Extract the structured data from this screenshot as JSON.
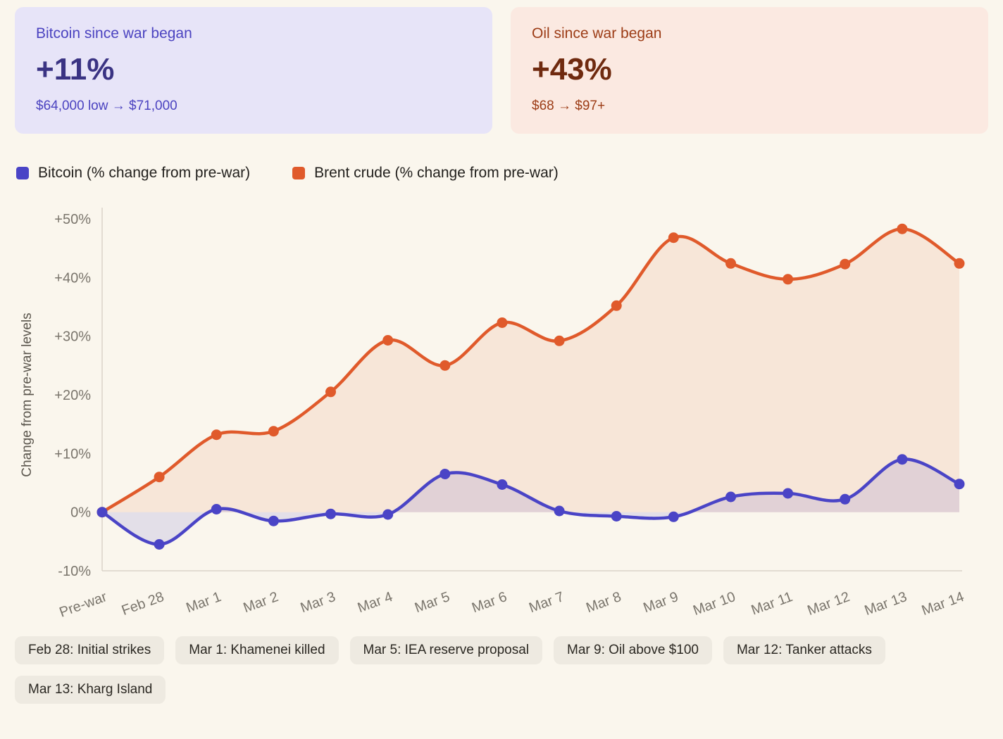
{
  "cards": {
    "bitcoin": {
      "title": "Bitcoin since war began",
      "value": "+11%",
      "subtitle": "$64,000 low → $71,000",
      "bg_color": "#e7e4f8",
      "accent_color": "#4b43c0",
      "value_color": "#3a3383"
    },
    "oil": {
      "title": "Oil since war began",
      "value": "+43%",
      "subtitle": "$68 → $97+",
      "bg_color": "#fbe9e1",
      "accent_color": "#9c3c16",
      "value_color": "#6f2a0f"
    }
  },
  "legend": {
    "items": [
      {
        "label": "Bitcoin (% change from pre-war)",
        "color": "#4a44c6"
      },
      {
        "label": "Brent crude (% change from pre-war)",
        "color": "#e05a2b"
      }
    ]
  },
  "chart_data": {
    "type": "line",
    "title": "",
    "xlabel": "",
    "ylabel": "Change from pre-war levels",
    "categories": [
      "Pre-war",
      "Feb 28",
      "Mar 1",
      "Mar 2",
      "Mar 3",
      "Mar 4",
      "Mar 5",
      "Mar 6",
      "Mar 7",
      "Mar 8",
      "Mar 9",
      "Mar 10",
      "Mar 11",
      "Mar 12",
      "Mar 13",
      "Mar 14"
    ],
    "series": [
      {
        "name": "Bitcoin (% change from pre-war)",
        "color": "#4a44c6",
        "fill_opacity": 0.13,
        "values": [
          0,
          -5.5,
          0.5,
          -1.5,
          -0.3,
          -0.4,
          6.5,
          4.7,
          0.2,
          -0.7,
          -0.8,
          2.6,
          3.2,
          2.2,
          9,
          4.8
        ]
      },
      {
        "name": "Brent crude (% change from pre-war)",
        "color": "#e05a2b",
        "fill_opacity": 0.1,
        "values": [
          0,
          6,
          13.2,
          13.8,
          20.5,
          29.3,
          25,
          32.3,
          29.2,
          35.2,
          46.8,
          42.4,
          39.7,
          42.3,
          48.3,
          42.4
        ]
      }
    ],
    "ylim": [
      -10,
      50
    ],
    "yticks": [
      -10,
      0,
      10,
      20,
      30,
      40,
      50
    ],
    "ytick_labels": [
      "-10%",
      "0%",
      "+10%",
      "+20%",
      "+30%",
      "+40%",
      "+50%"
    ],
    "grid": false,
    "legend_position": "top",
    "marker_radius": 7.5,
    "line_width": 4.5,
    "axis_color": "#d9d4ca"
  },
  "annotations": [
    "Feb 28: Initial strikes",
    "Mar 1: Khamenei killed",
    "Mar 5: IEA reserve proposal",
    "Mar 9: Oil above $100",
    "Mar 12: Tanker attacks",
    "Mar 13: Kharg Island"
  ]
}
